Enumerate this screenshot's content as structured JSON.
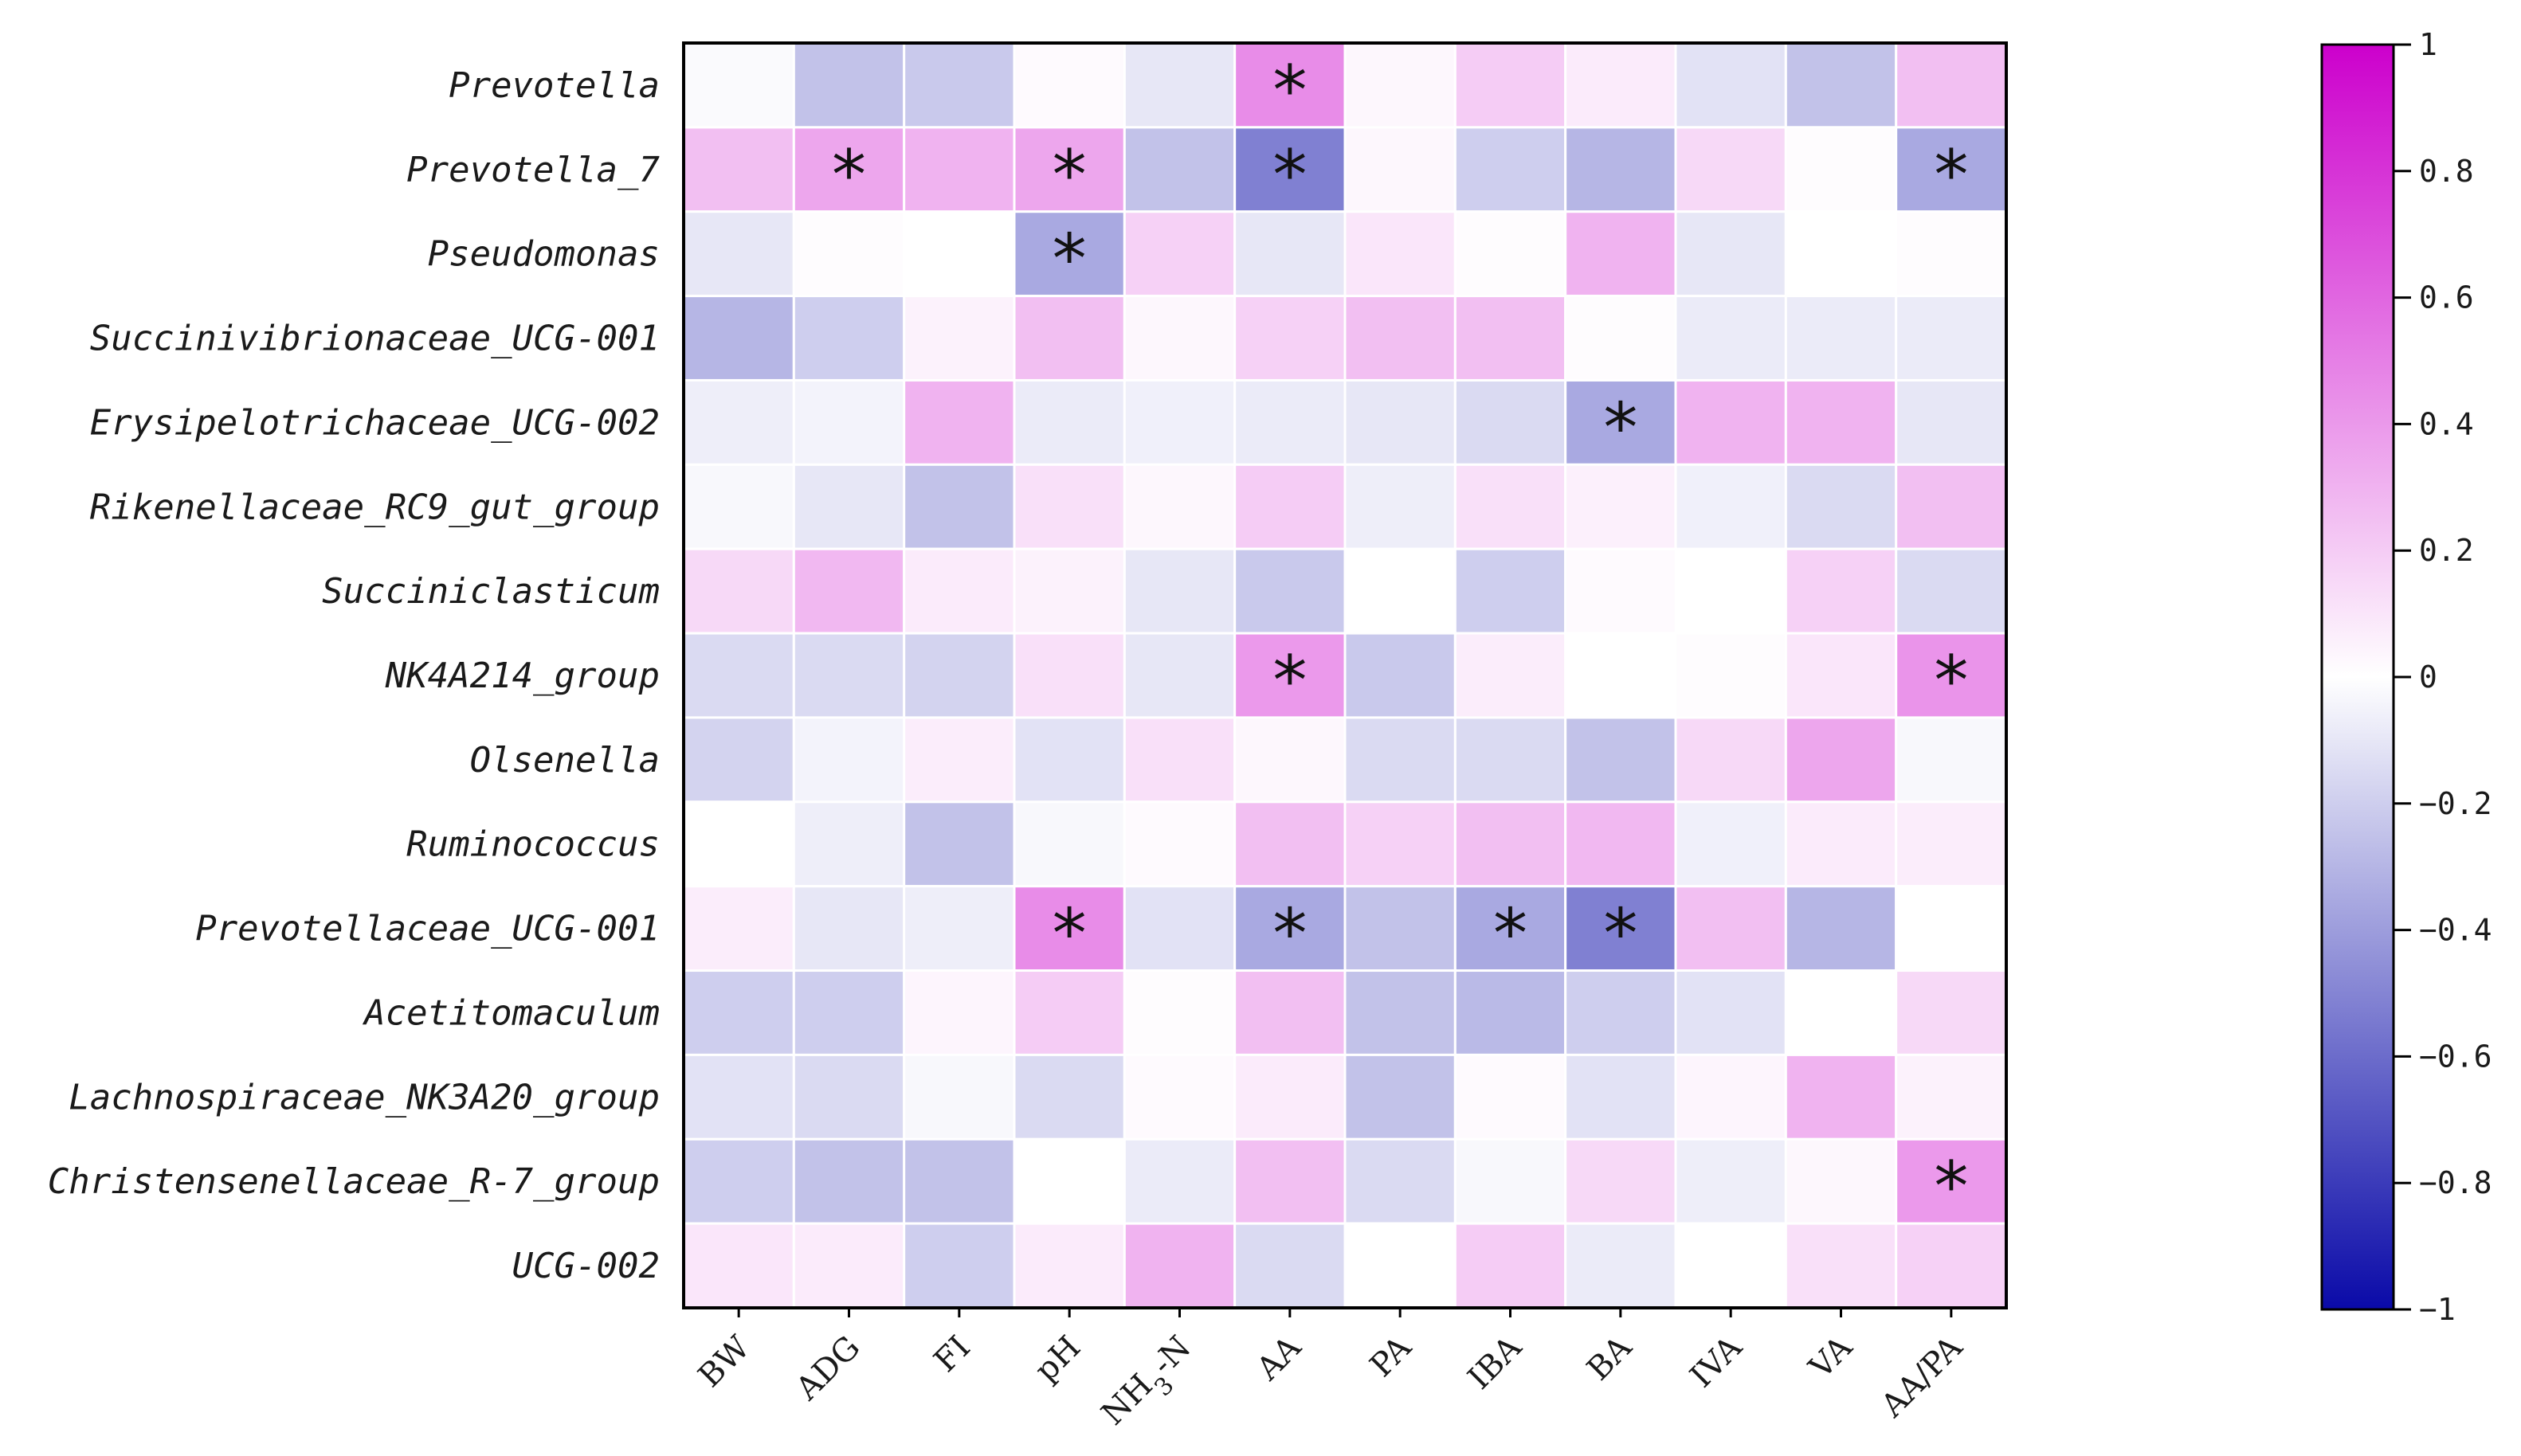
{
  "chart_data": {
    "type": "heatmap",
    "title": "",
    "xlabel": "",
    "ylabel": "",
    "columns": [
      "BW",
      "ADG",
      "FI",
      "pH",
      "NH3-N",
      "AA",
      "PA",
      "IBA",
      "BA",
      "IVA",
      "VA",
      "AA/PA"
    ],
    "nh3n_label": {
      "base": "NH",
      "sub": "3",
      "suffix": "-N"
    },
    "rows": [
      "Prevotella",
      "Prevotella_7",
      "Pseudomonas",
      "Succinivibrionaceae_UCG-001",
      "Erysipelotrichaceae_UCG-002",
      "Rikenellaceae_RC9_gut_group",
      "Succiniclasticum",
      "NK4A214_group",
      "Olsenella",
      "Ruminococcus",
      "Prevotellaceae_UCG-001",
      "Acetitomaculum",
      "Lachnospiraceae_NK3A20_group",
      "Christensenellaceae_R-7_group",
      "UCG-002"
    ],
    "values": [
      [
        -0.02,
        -0.25,
        -0.22,
        0.02,
        -0.1,
        0.45,
        0.03,
        0.2,
        0.08,
        -0.12,
        -0.25,
        0.25
      ],
      [
        0.25,
        0.35,
        0.3,
        0.35,
        -0.25,
        -0.52,
        0.03,
        -0.2,
        -0.3,
        0.15,
        0.01,
        -0.35
      ],
      [
        -0.1,
        0.01,
        0.0,
        -0.35,
        0.18,
        -0.1,
        0.1,
        0.01,
        0.3,
        -0.1,
        0.0,
        0.01
      ],
      [
        -0.3,
        -0.2,
        0.05,
        0.25,
        0.03,
        0.18,
        0.25,
        0.25,
        0.01,
        -0.08,
        -0.08,
        -0.08
      ],
      [
        -0.07,
        -0.05,
        0.3,
        -0.08,
        -0.06,
        -0.08,
        -0.1,
        -0.15,
        -0.35,
        0.3,
        0.3,
        -0.1
      ],
      [
        -0.03,
        -0.1,
        -0.25,
        0.12,
        0.03,
        0.2,
        -0.07,
        0.12,
        0.06,
        -0.06,
        -0.15,
        0.25
      ],
      [
        0.15,
        0.28,
        0.08,
        0.05,
        -0.1,
        -0.22,
        0.0,
        -0.2,
        0.02,
        0.0,
        0.18,
        -0.15
      ],
      [
        -0.15,
        -0.15,
        -0.18,
        0.12,
        -0.1,
        0.4,
        -0.22,
        0.07,
        0.0,
        0.01,
        0.1,
        0.42
      ],
      [
        -0.18,
        -0.05,
        0.07,
        -0.12,
        0.12,
        0.03,
        -0.15,
        -0.15,
        -0.25,
        0.15,
        0.35,
        -0.03
      ],
      [
        0.0,
        -0.07,
        -0.25,
        -0.03,
        0.02,
        0.25,
        0.18,
        0.25,
        0.28,
        -0.06,
        0.08,
        0.07
      ],
      [
        0.07,
        -0.1,
        -0.07,
        0.45,
        -0.12,
        -0.35,
        -0.25,
        -0.35,
        -0.52,
        0.25,
        -0.3,
        0.0
      ],
      [
        -0.2,
        -0.2,
        0.04,
        0.2,
        0.01,
        0.25,
        -0.25,
        -0.28,
        -0.2,
        -0.12,
        0.0,
        0.15
      ],
      [
        -0.12,
        -0.15,
        -0.03,
        -0.15,
        0.02,
        0.08,
        -0.25,
        0.02,
        -0.12,
        0.04,
        0.3,
        0.05
      ],
      [
        -0.2,
        -0.25,
        -0.25,
        0.0,
        -0.08,
        0.25,
        -0.15,
        -0.03,
        0.15,
        -0.07,
        0.03,
        0.4
      ],
      [
        0.1,
        0.08,
        -0.2,
        0.08,
        0.3,
        -0.15,
        0.0,
        0.2,
        -0.08,
        0.0,
        0.12,
        0.18
      ]
    ],
    "significant": [
      [
        0,
        5
      ],
      [
        1,
        1
      ],
      [
        1,
        3
      ],
      [
        1,
        5
      ],
      [
        1,
        11
      ],
      [
        2,
        3
      ],
      [
        4,
        8
      ],
      [
        7,
        5
      ],
      [
        7,
        11
      ],
      [
        10,
        3
      ],
      [
        10,
        5
      ],
      [
        10,
        7
      ],
      [
        10,
        8
      ],
      [
        13,
        11
      ]
    ],
    "significance_marker": "*",
    "colorbar": {
      "range": [
        -1,
        1
      ],
      "ticks": [
        1,
        0.8,
        0.6,
        0.4,
        0.2,
        0,
        -0.2,
        -0.4,
        -0.6,
        -0.8,
        -1
      ],
      "tick_labels": [
        "1",
        "0.8",
        "0.6",
        "0.4",
        "0.2",
        "0",
        "−0.2",
        "−0.4",
        "−0.6",
        "−0.8",
        "−1"
      ],
      "colors": {
        "negative_end": "#0a0aa8",
        "mid": "#ffffff",
        "positive_end": "#cc00cc"
      }
    },
    "grid_line_color": "#ffffff",
    "frame_color": "#000000"
  }
}
